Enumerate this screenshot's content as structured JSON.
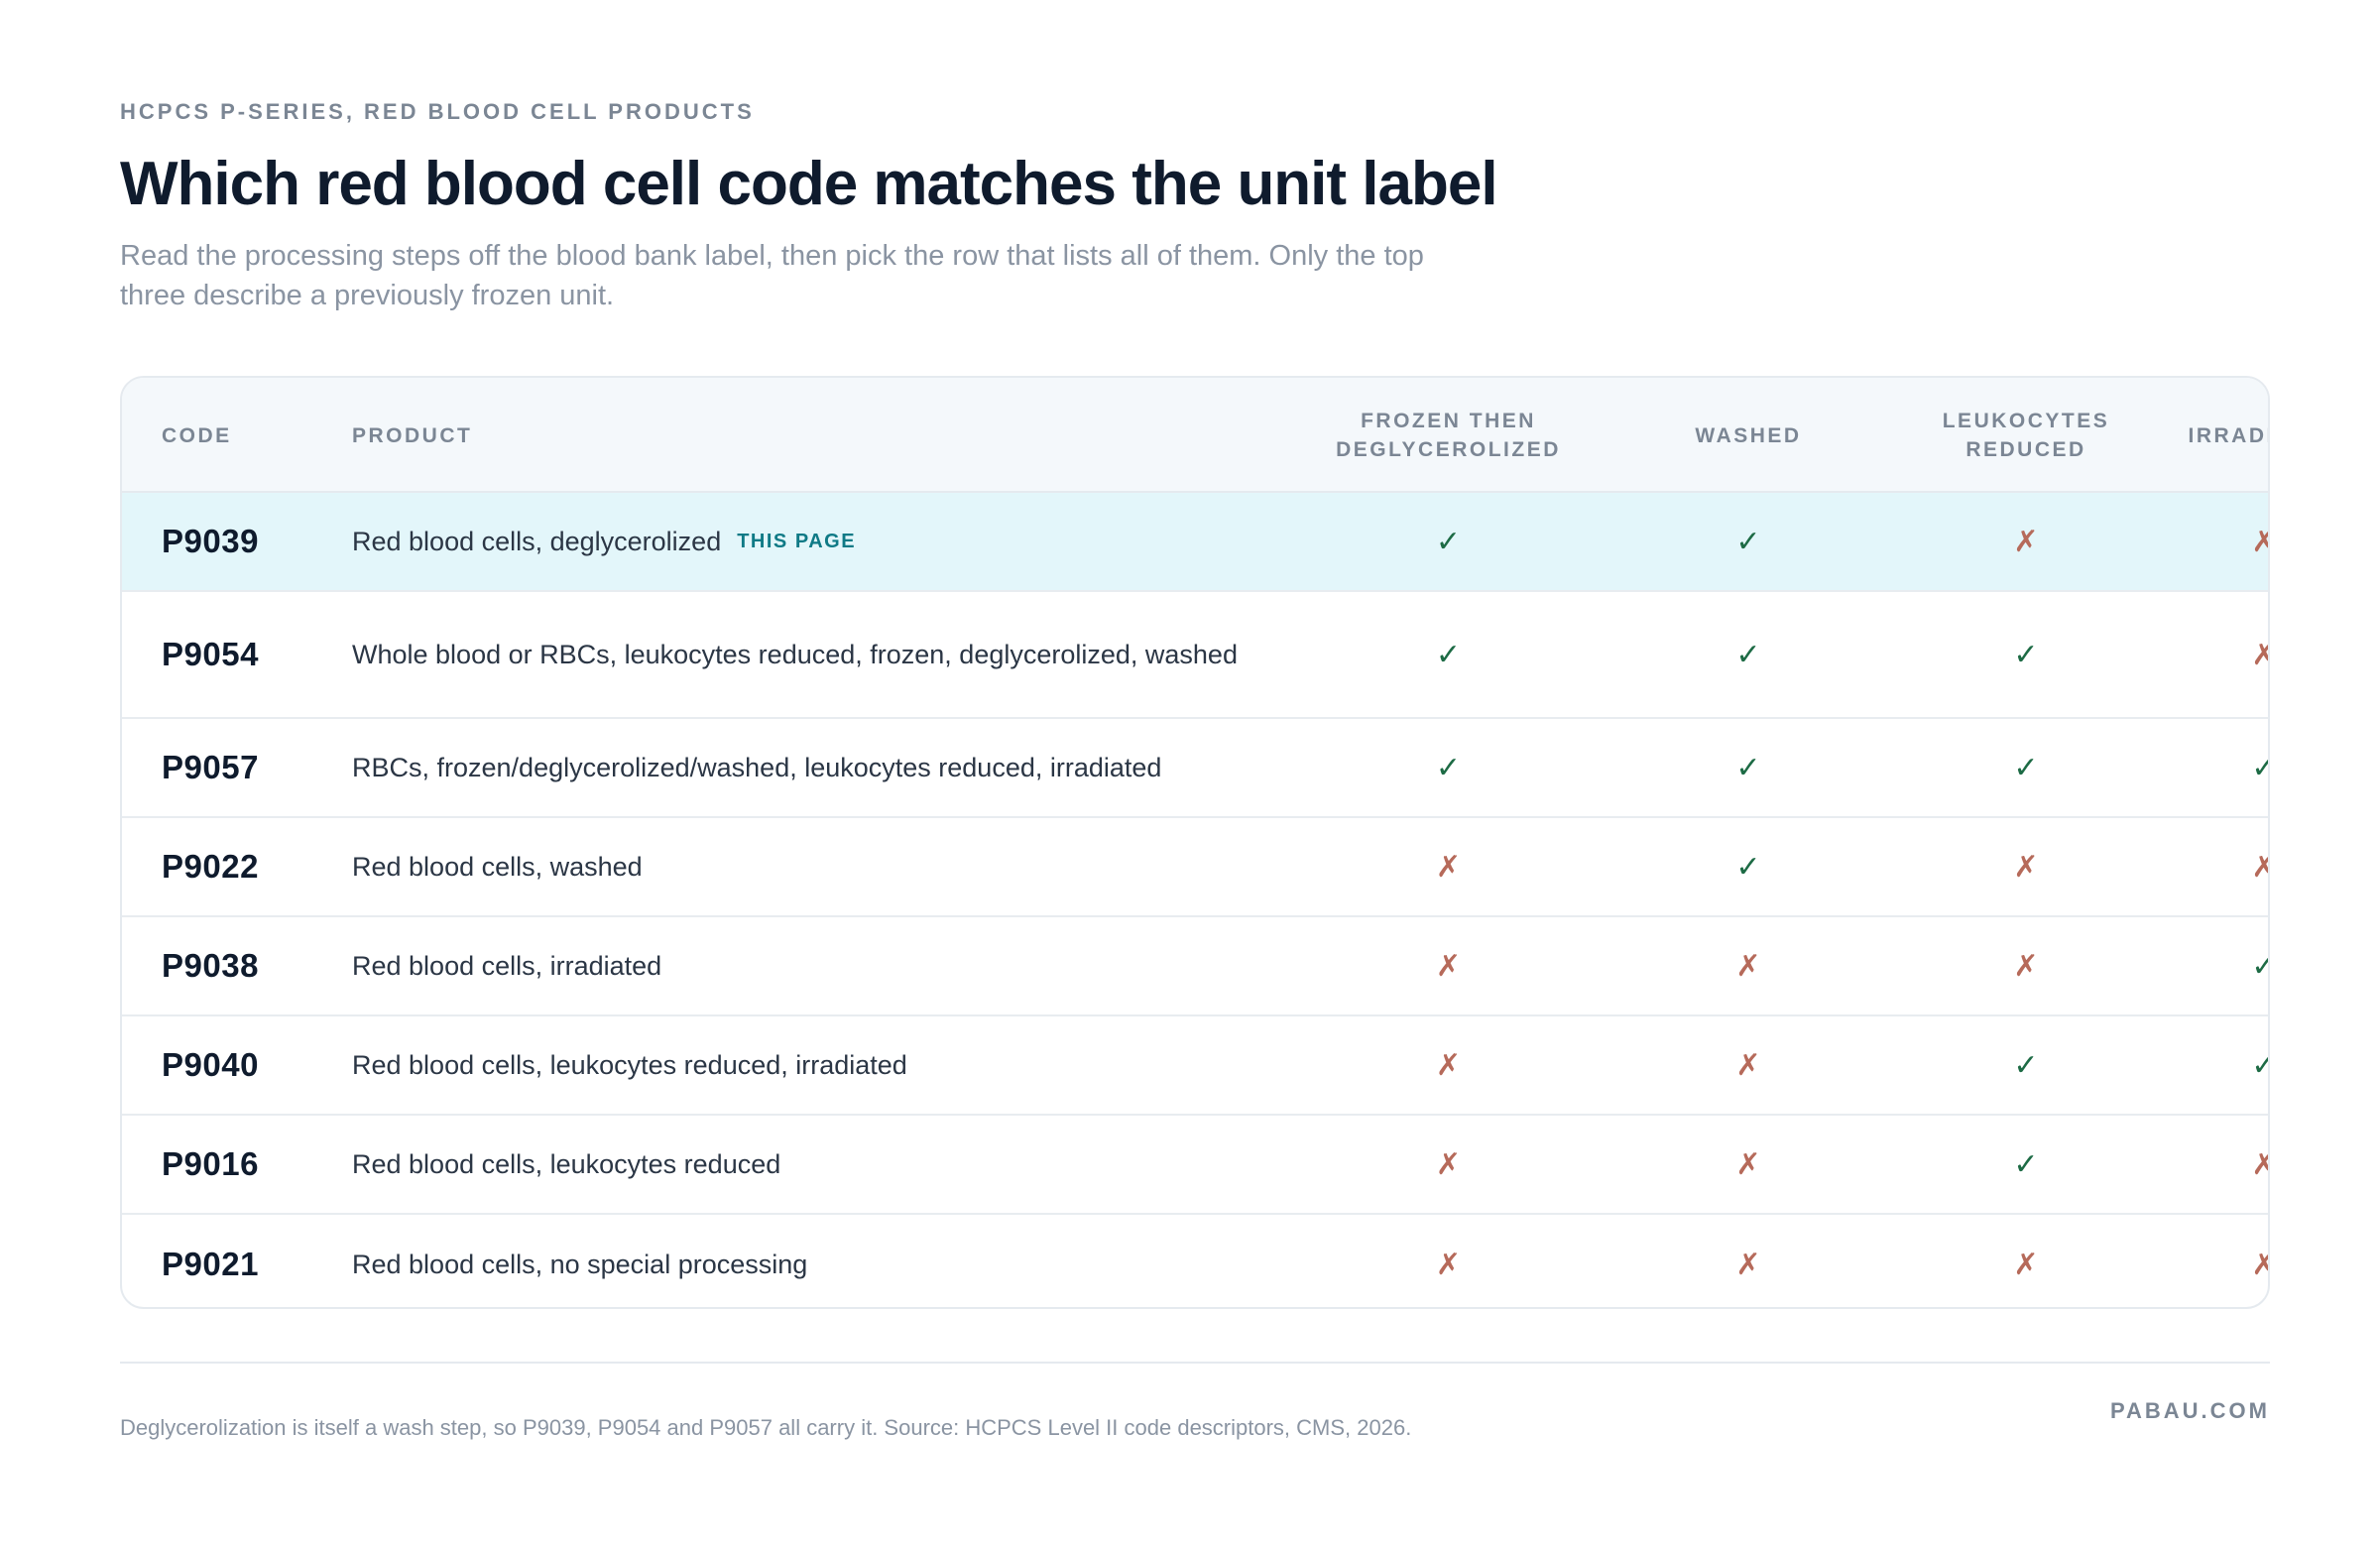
{
  "header": {
    "eyebrow": "HCPCS P-SERIES, RED BLOOD CELL PRODUCTS",
    "title": "Which red blood cell code matches the unit label",
    "subtitle": "Read the processing steps off the blood bank label, then pick the row that lists all of them. Only the top three describe a previously frozen unit."
  },
  "table": {
    "columns": {
      "code": "CODE",
      "product": "PRODUCT",
      "frozen": "FROZEN THEN DEGLYCEROLIZED",
      "washed": "WASHED",
      "leuko": "LEUKOCYTES REDUCED",
      "irradiated": "IRRADIATED"
    },
    "symbols": {
      "yes": "✓",
      "no": "✗"
    },
    "rows": [
      {
        "code": "P9039",
        "product": "Red blood cells, deglycerolized",
        "badge": "THIS PAGE",
        "frozen": "✓",
        "washed": "✓",
        "leuko": "✗",
        "irradiated": "✗"
      },
      {
        "code": "P9054",
        "product": "Whole blood or RBCs, leukocytes reduced, frozen, deglycerolized, washed",
        "frozen": "✓",
        "washed": "✓",
        "leuko": "✓",
        "irradiated": "✗"
      },
      {
        "code": "P9057",
        "product": "RBCs, frozen/deglycerolized/washed, leukocytes reduced, irradiated",
        "frozen": "✓",
        "washed": "✓",
        "leuko": "✓",
        "irradiated": "✓"
      },
      {
        "code": "P9022",
        "product": "Red blood cells, washed",
        "frozen": "✗",
        "washed": "✓",
        "leuko": "✗",
        "irradiated": "✗"
      },
      {
        "code": "P9038",
        "product": "Red blood cells, irradiated",
        "frozen": "✗",
        "washed": "✗",
        "leuko": "✗",
        "irradiated": "✓"
      },
      {
        "code": "P9040",
        "product": "Red blood cells, leukocytes reduced, irradiated",
        "frozen": "✗",
        "washed": "✗",
        "leuko": "✓",
        "irradiated": "✓"
      },
      {
        "code": "P9016",
        "product": "Red blood cells, leukocytes reduced",
        "frozen": "✗",
        "washed": "✗",
        "leuko": "✓",
        "irradiated": "✗"
      },
      {
        "code": "P9021",
        "product": "Red blood cells, no special processing",
        "frozen": "✗",
        "washed": "✗",
        "leuko": "✗",
        "irradiated": "✗"
      }
    ]
  },
  "footer": {
    "note": "Deglycerolization is itself a wash step, so P9039, P9054 and P9057 all carry it. Source: HCPCS Level II code descriptors, CMS, 2026.",
    "brand": "PABAU.COM"
  },
  "colors": {
    "highlight_row": "#e3f6fa",
    "check": "#1d6b45",
    "cross": "#b66a5a",
    "badge": "#0f7a86"
  }
}
